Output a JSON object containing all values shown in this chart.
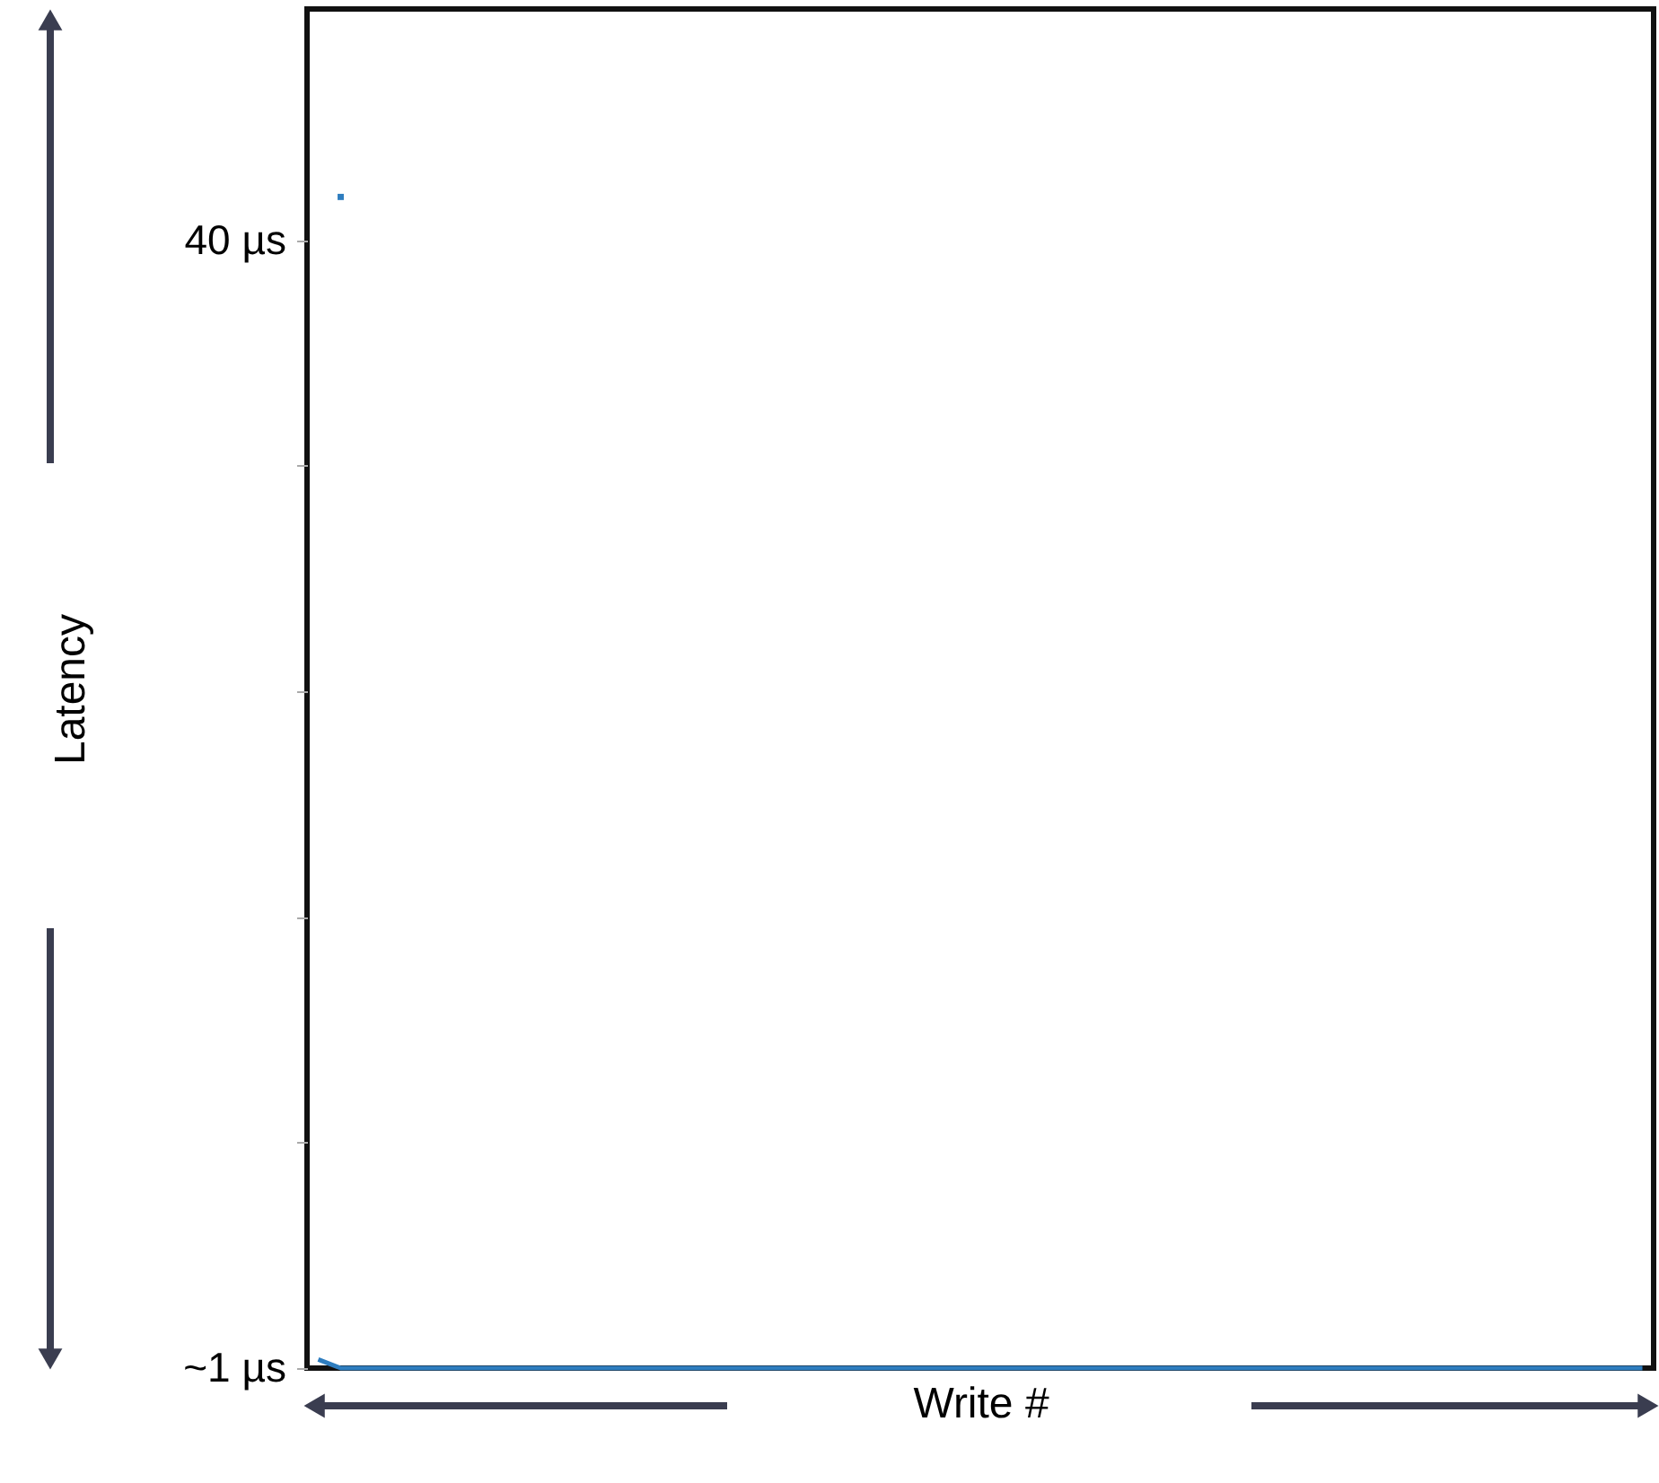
{
  "chart_data": {
    "type": "line",
    "xlabel": "Write #",
    "ylabel": "Latency",
    "categories": [
      null,
      null,
      null,
      null,
      null,
      null,
      null,
      null,
      null,
      null,
      null,
      null,
      null,
      null,
      null,
      null,
      null,
      null,
      null,
      null,
      null,
      null,
      null,
      null,
      null,
      null,
      null,
      null,
      null,
      null,
      null,
      null,
      null,
      null,
      null,
      null,
      null,
      null,
      null,
      null,
      null,
      null,
      null,
      null,
      null,
      null,
      null,
      null,
      null,
      null,
      null,
      null,
      null,
      null,
      null,
      null,
      null,
      null,
      null,
      null
    ],
    "series": [
      {
        "color": "#2e7dbf",
        "values": [
          1.3,
          1,
          1,
          1,
          1,
          1,
          1,
          1,
          1,
          1,
          1,
          1,
          1,
          1,
          1,
          1,
          1,
          1,
          1,
          1,
          1,
          1,
          1,
          1,
          1,
          1,
          1,
          1,
          1,
          1,
          1,
          1,
          1,
          1,
          1,
          1,
          1,
          1,
          1,
          1,
          1,
          1,
          1,
          1,
          1,
          1,
          1,
          1,
          1,
          1,
          1,
          1,
          1,
          1,
          1,
          1,
          1,
          1,
          1,
          1
        ]
      },
      {
        "type": "scatter",
        "marker": "square",
        "color": "#2e7dbf",
        "values": [
          null,
          41.5,
          null,
          null,
          null,
          null,
          null,
          null,
          null,
          null,
          null,
          null,
          null,
          null,
          null,
          null,
          null,
          null,
          null,
          null,
          null,
          null,
          null,
          null,
          null,
          null,
          null,
          null,
          null,
          null,
          null,
          null,
          null,
          null,
          null,
          null,
          null,
          null,
          null,
          null,
          null,
          null,
          null,
          null,
          null,
          null,
          null,
          null,
          null,
          null,
          null,
          null,
          null,
          null,
          null,
          null,
          null,
          null,
          null,
          null
        ]
      }
    ],
    "ylim": [
      1,
      48
    ],
    "yticks": [
      {
        "value": 1,
        "label": "~1 µs"
      },
      {
        "value": 8.8,
        "label": null
      },
      {
        "value": 16.6,
        "label": null
      },
      {
        "value": 24.4,
        "label": null
      },
      {
        "value": 32.2,
        "label": null
      },
      {
        "value": 40,
        "label": "40 µs"
      }
    ],
    "tick_labels": "y",
    "grid": false
  }
}
